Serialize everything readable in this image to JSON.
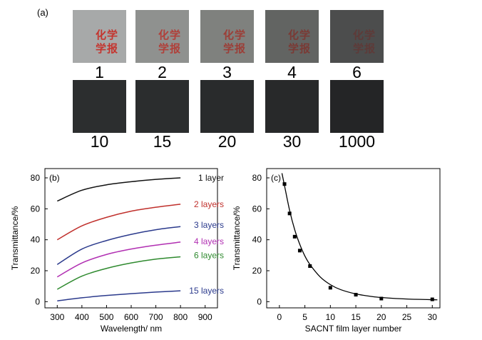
{
  "panel_a": {
    "label": "(a)",
    "watermark": [
      "化学",
      "学报"
    ],
    "tiles": [
      {
        "label": "1",
        "bg": "#a7a9a9",
        "text": "#c4352f"
      },
      {
        "label": "2",
        "bg": "#8f918f",
        "text": "#b0403a"
      },
      {
        "label": "3",
        "bg": "#7f817e",
        "text": "#9c3e37"
      },
      {
        "label": "4",
        "bg": "#626462",
        "text": "#7a3a35"
      },
      {
        "label": "6",
        "bg": "#4c4d4d",
        "text": "#5e3a38"
      },
      {
        "label": "10",
        "bg": "#2c2e2f",
        "text": null
      },
      {
        "label": "15",
        "bg": "#2b2d2e",
        "text": null
      },
      {
        "label": "20",
        "bg": "#292b2c",
        "text": null
      },
      {
        "label": "30",
        "bg": "#28292a",
        "text": null
      },
      {
        "label": "1000",
        "bg": "#242526",
        "text": null
      }
    ]
  },
  "chart_data": [
    {
      "type": "line",
      "panel_label": "(b)",
      "xlabel": "Wavelength/ nm",
      "ylabel": "Transmittance/%",
      "xlim": [
        250,
        950
      ],
      "ylim": [
        -4,
        86
      ],
      "xticks": [
        300,
        400,
        500,
        600,
        700,
        800,
        900
      ],
      "yticks": [
        0,
        20,
        40,
        60,
        80
      ],
      "grid": false,
      "series": [
        {
          "name": "1 layer",
          "color": "#111111",
          "x": [
            300,
            400,
            500,
            600,
            700,
            800
          ],
          "y": [
            65,
            72,
            75.5,
            77.5,
            79,
            80
          ]
        },
        {
          "name": "2 layers",
          "color": "#c0302c",
          "x": [
            300,
            400,
            500,
            600,
            700,
            800
          ],
          "y": [
            40,
            49,
            54.5,
            58.5,
            61,
            63
          ]
        },
        {
          "name": "3 layers",
          "color": "#2b3a8c",
          "x": [
            300,
            400,
            500,
            600,
            700,
            800
          ],
          "y": [
            24,
            34,
            39.5,
            43.5,
            46.5,
            48.5
          ]
        },
        {
          "name": "4 layers",
          "color": "#b12fb2",
          "x": [
            300,
            400,
            500,
            600,
            700,
            800
          ],
          "y": [
            16,
            25,
            30.5,
            34,
            36.5,
            38.5
          ]
        },
        {
          "name": "6 layers",
          "color": "#2f8a2f",
          "x": [
            300,
            400,
            500,
            600,
            700,
            800
          ],
          "y": [
            8,
            16.5,
            21.5,
            25,
            27.5,
            29
          ]
        },
        {
          "name": "15 layers",
          "color": "#2b3a8c",
          "x": [
            300,
            400,
            500,
            600,
            700,
            800
          ],
          "y": [
            0.5,
            2.5,
            4,
            5.2,
            6.2,
            7
          ]
        }
      ]
    },
    {
      "type": "scatter",
      "panel_label": "(c)",
      "xlabel": "SACNT film layer number",
      "ylabel": "Transmittance/%",
      "xlim": [
        -2.5,
        31.5
      ],
      "ylim": [
        -4,
        86
      ],
      "xticks": [
        0,
        5,
        10,
        15,
        20,
        25,
        30
      ],
      "yticks": [
        0,
        20,
        40,
        60,
        80
      ],
      "grid": false,
      "points": {
        "x": [
          1,
          2,
          3,
          4,
          6,
          10,
          15,
          20,
          30
        ],
        "y": [
          76,
          57,
          42,
          33,
          23,
          9,
          4.5,
          2,
          1.5
        ]
      },
      "fit": {
        "x": [
          0.5,
          1,
          2,
          3,
          4,
          5,
          6,
          8,
          10,
          12,
          15,
          18,
          20,
          25,
          31
        ],
        "y": [
          83,
          75,
          59,
          46.5,
          37,
          29.5,
          24,
          16,
          11,
          7.8,
          5,
          3.4,
          2.7,
          1.7,
          1.2
        ]
      }
    }
  ]
}
